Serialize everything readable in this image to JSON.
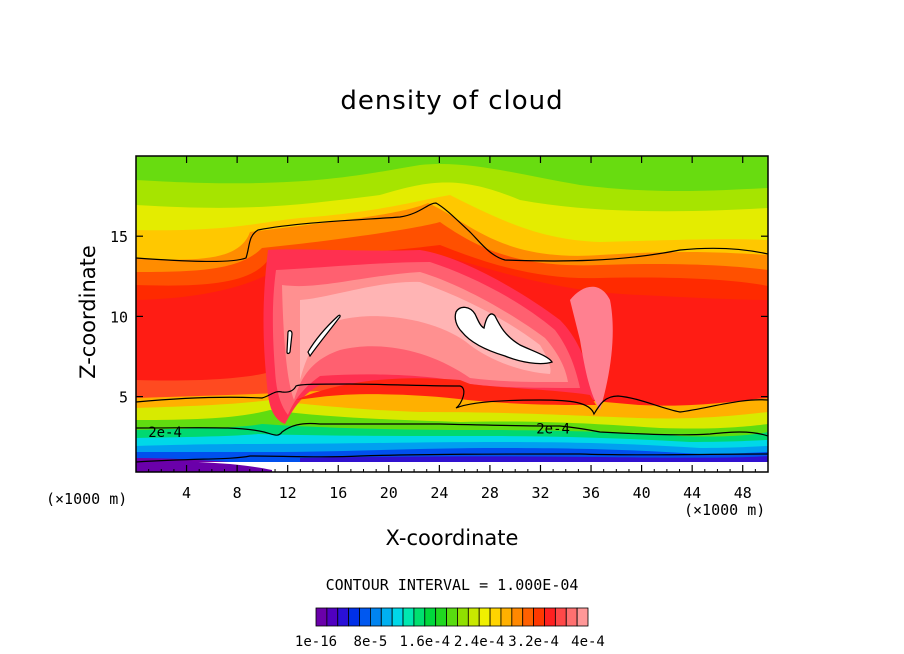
{
  "chart_data": {
    "type": "heatmap",
    "title": "density of cloud",
    "xlabel": "X-coordinate",
    "ylabel": "Z-coordinate",
    "x_unit_label": "(×1000 m)",
    "xlim": [
      0,
      50
    ],
    "ylim": [
      0.3,
      20
    ],
    "x_ticks": [
      4,
      8,
      12,
      16,
      20,
      24,
      28,
      32,
      36,
      40,
      44,
      48
    ],
    "y_ticks": [
      5,
      10,
      15
    ],
    "contour_interval_text": "CONTOUR INTERVAL = 1.000E-04",
    "contour_labels": [
      {
        "text": "2e-4",
        "x": 2.3,
        "z": 2.8
      },
      {
        "text": "2e-4",
        "x": 33.0,
        "z": 3.0
      }
    ],
    "colorbar": {
      "colors": [
        "#6a00aa",
        "#5000c0",
        "#2a10d8",
        "#0030e8",
        "#0058f0",
        "#0084f0",
        "#00b0f0",
        "#00d8e8",
        "#00e8b0",
        "#00e070",
        "#00d83c",
        "#20d820",
        "#58dc10",
        "#90e000",
        "#c8e800",
        "#f0f000",
        "#ffd400",
        "#ffb000",
        "#ff8800",
        "#ff6000",
        "#ff3800",
        "#ff2020",
        "#ff4848",
        "#ff7070",
        "#ff9898"
      ],
      "tick_labels": [
        "1e-16",
        "8e-5",
        "1.6e-4",
        "2.4e-4",
        "3.2e-4",
        "4e-4"
      ]
    },
    "field_description": {
      "upper_level_peaks_x": [
        12.5,
        26.5
      ],
      "white_maximum_region": {
        "x_range": [
          25.5,
          33.0
        ],
        "z_range": [
          7.0,
          10.2
        ]
      }
    }
  }
}
